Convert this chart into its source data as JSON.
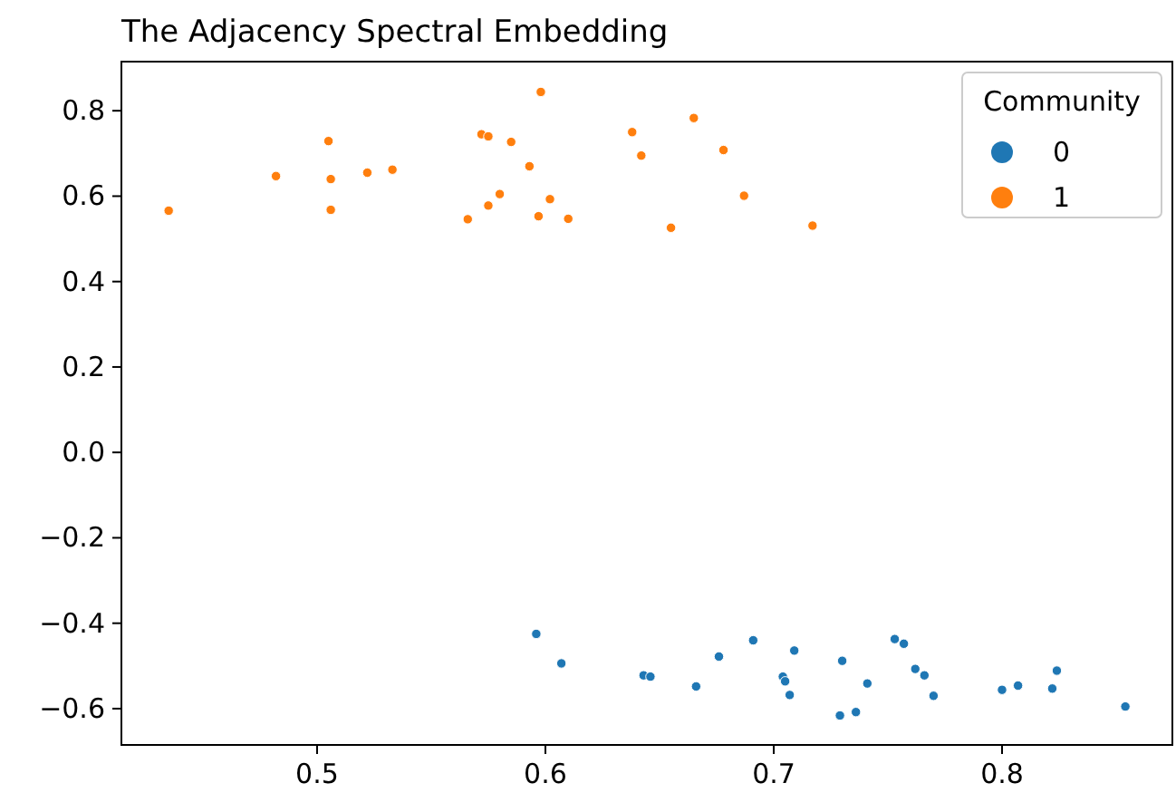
{
  "chart_data": {
    "type": "scatter",
    "title": "The Adjacency Spectral Embedding",
    "legend_title": "Community",
    "legend": "top right",
    "marker": "circle",
    "xlim": [
      0.4143,
      0.8746
    ],
    "ylim": [
      -0.685,
      0.915
    ],
    "xticks": [
      0.5,
      0.6,
      0.7,
      0.8
    ],
    "yticks": [
      {
        "value": -0.6,
        "label": "−0.6"
      },
      {
        "value": -0.4,
        "label": "−0.4"
      },
      {
        "value": -0.2,
        "label": "−0.2"
      },
      "0.0",
      0.2,
      0.4,
      0.6,
      0.8
    ],
    "series": [
      {
        "name": "0",
        "color": "#1f77b4",
        "x": [
          0.596,
          0.607,
          0.643,
          0.646,
          0.666,
          0.676,
          0.691,
          0.704,
          0.705,
          0.707,
          0.709,
          0.729,
          0.73,
          0.736,
          0.741,
          0.753,
          0.757,
          0.762,
          0.766,
          0.77,
          0.8,
          0.807,
          0.822,
          0.824,
          0.854
        ],
        "values": [
          -0.425,
          -0.494,
          -0.522,
          -0.525,
          -0.548,
          -0.478,
          -0.44,
          -0.525,
          -0.536,
          -0.568,
          -0.464,
          -0.616,
          -0.488,
          -0.608,
          -0.541,
          -0.437,
          -0.448,
          -0.507,
          -0.522,
          -0.57,
          -0.556,
          -0.546,
          -0.553,
          -0.511,
          -0.595
        ]
      },
      {
        "name": "1",
        "color": "#ff7f0e",
        "x": [
          0.435,
          0.482,
          0.505,
          0.506,
          0.506,
          0.522,
          0.533,
          0.566,
          0.572,
          0.575,
          0.575,
          0.58,
          0.585,
          0.593,
          0.597,
          0.598,
          0.602,
          0.61,
          0.638,
          0.642,
          0.655,
          0.665,
          0.678,
          0.687,
          0.717
        ],
        "values": [
          0.566,
          0.647,
          0.729,
          0.64,
          0.568,
          0.655,
          0.662,
          0.546,
          0.745,
          0.74,
          0.578,
          0.605,
          0.727,
          0.67,
          0.553,
          0.844,
          0.593,
          0.547,
          0.75,
          0.695,
          0.526,
          0.783,
          0.708,
          0.601,
          0.531
        ]
      }
    ]
  }
}
